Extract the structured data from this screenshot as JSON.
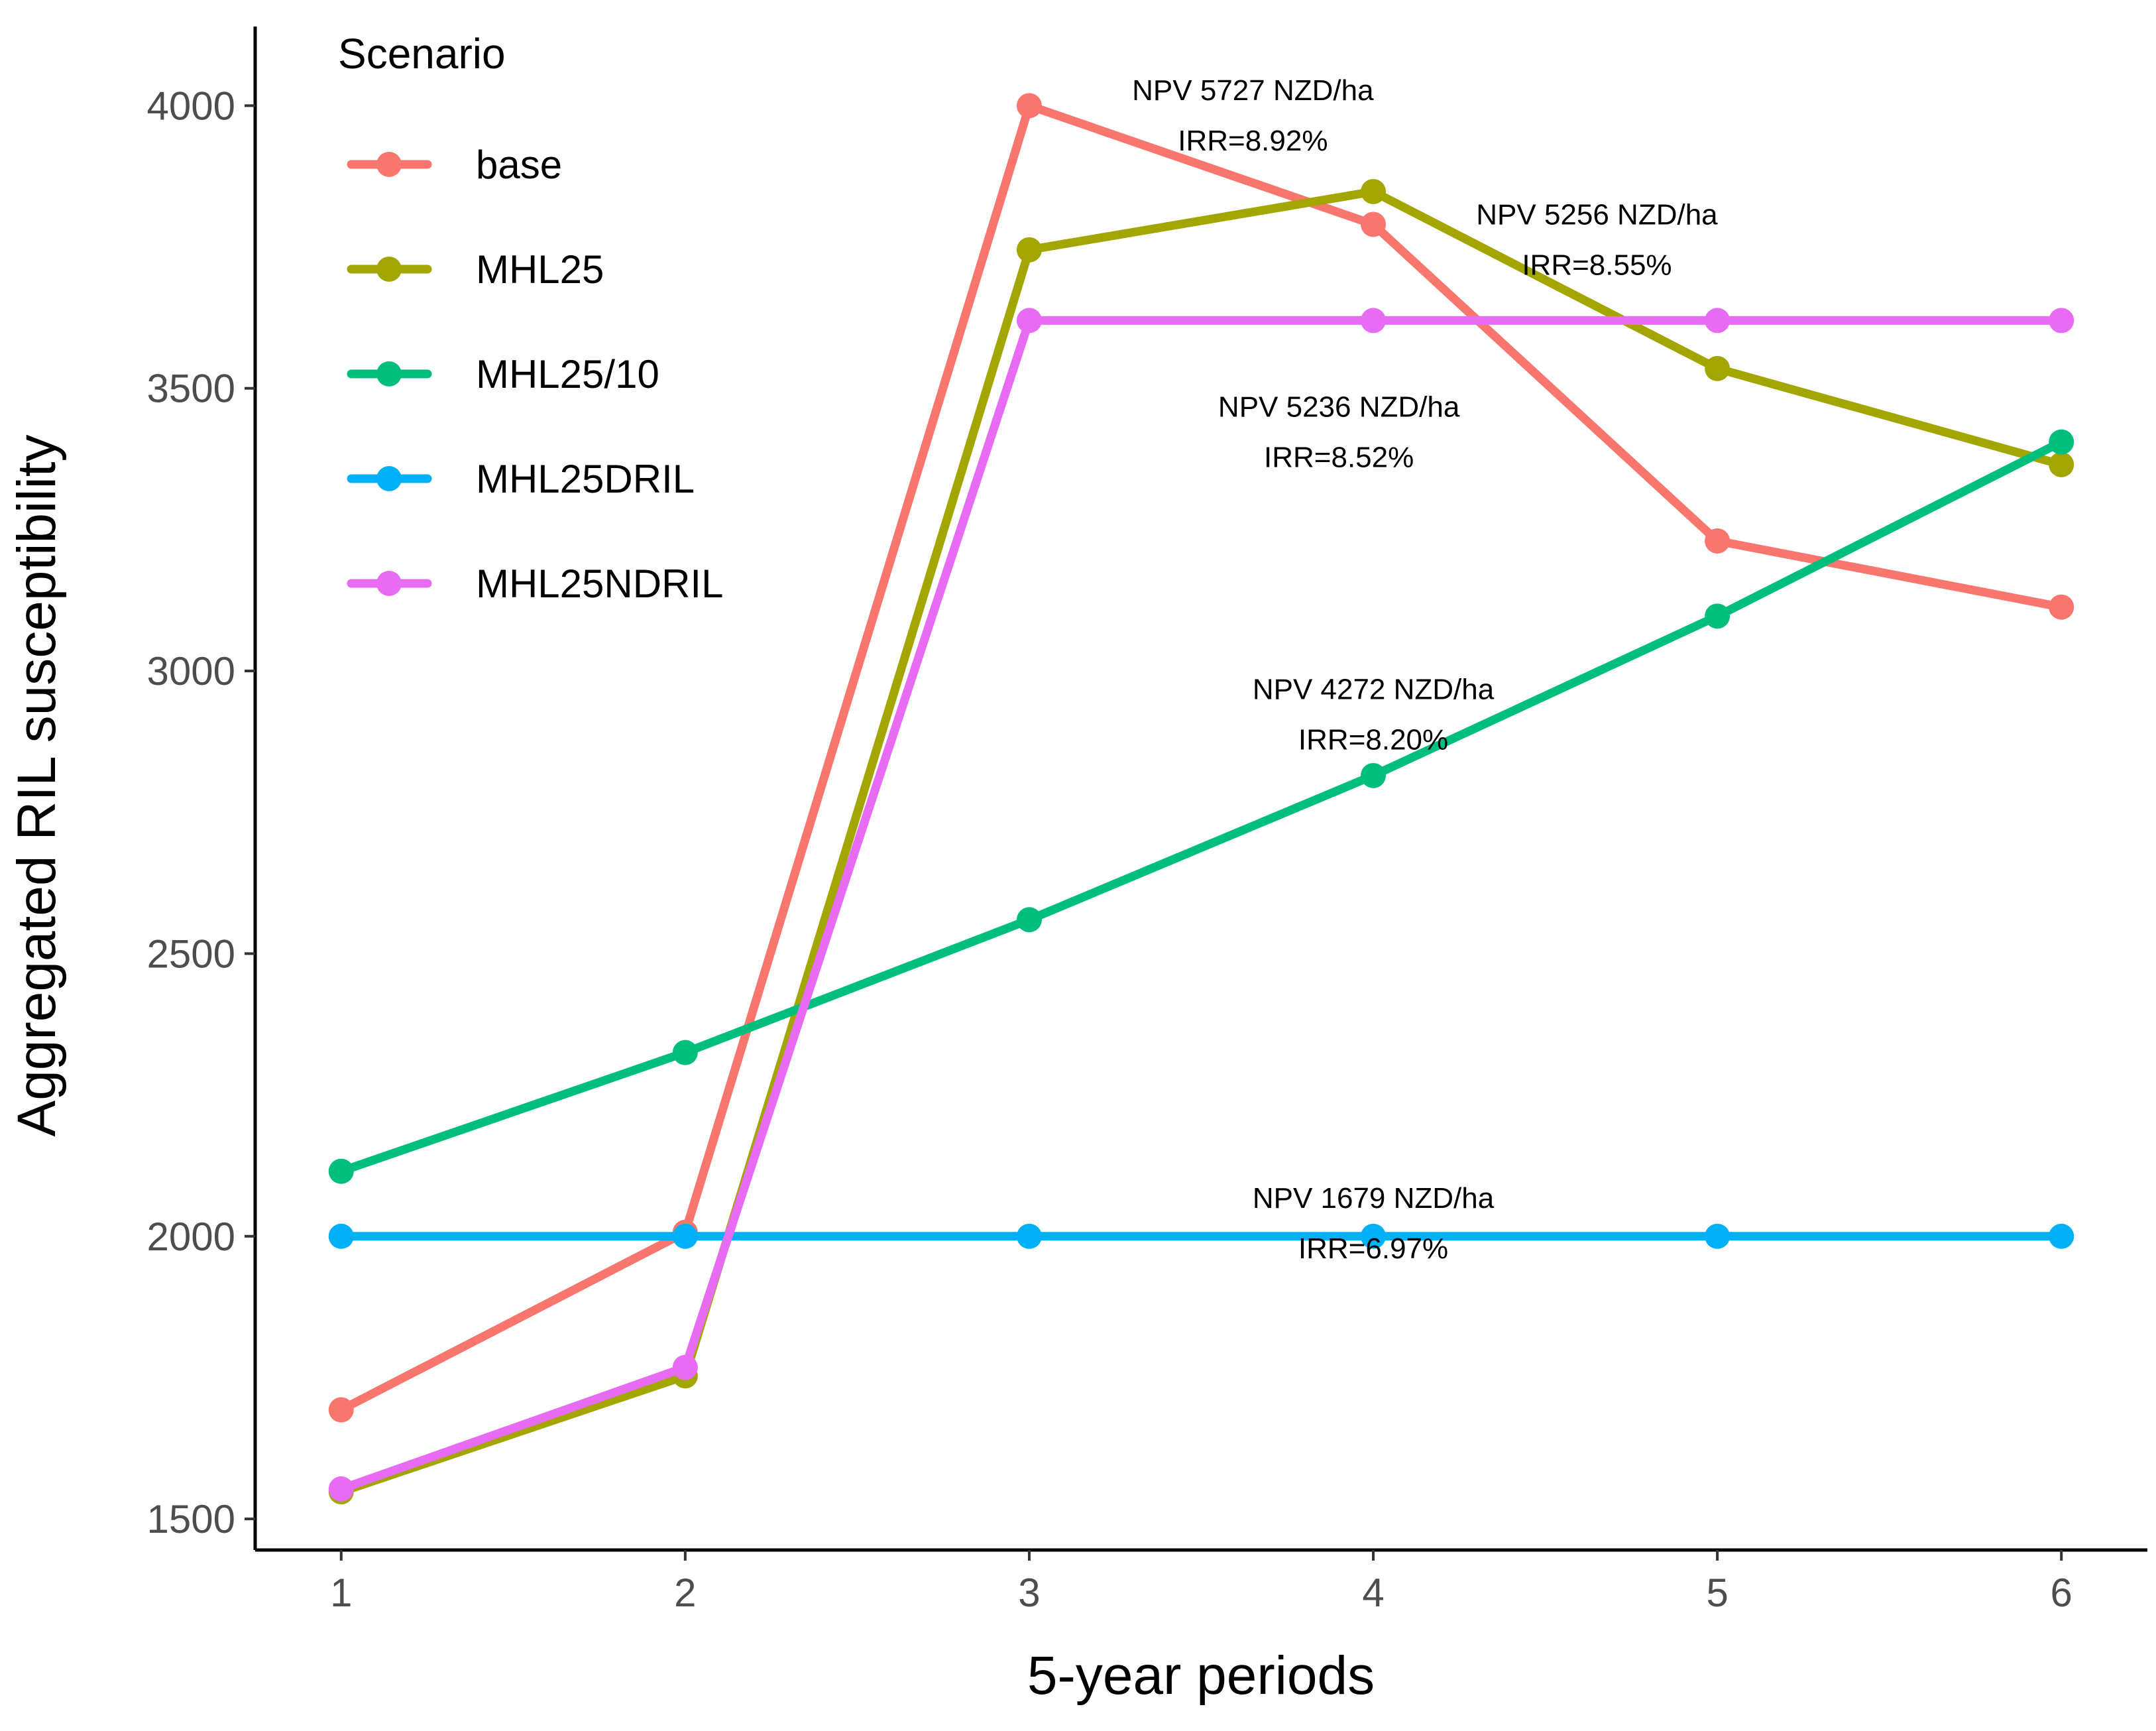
{
  "chart_data": {
    "type": "line",
    "title": "",
    "xlabel": "5-year periods",
    "ylabel": "Aggregated RIL susceptibility",
    "x": [
      1,
      2,
      3,
      4,
      5,
      6
    ],
    "x_ticks": [
      "1",
      "2",
      "3",
      "4",
      "5",
      "6"
    ],
    "xlim": [
      0.75,
      6.25
    ],
    "y_ticks": [
      "1500",
      "2000",
      "2500",
      "3000",
      "3500",
      "4000"
    ],
    "y_tick_values": [
      1500,
      2000,
      2500,
      3000,
      3500,
      4000
    ],
    "ylim": [
      1445,
      4140
    ],
    "grid": false,
    "legend": {
      "title": "Scenario",
      "position": "top-left"
    },
    "series": [
      {
        "name": "base",
        "color": "#F8766D",
        "values": [
          1693,
          2007,
          4000,
          3790,
          3230,
          3113
        ]
      },
      {
        "name": "MHL25",
        "color": "#A3A500",
        "values": [
          1548,
          1753,
          3745,
          3848,
          3535,
          3365
        ]
      },
      {
        "name": "MHL25/10",
        "color": "#00BF7D",
        "values": [
          2115,
          2325,
          2560,
          2815,
          3097,
          3405
        ]
      },
      {
        "name": "MHL25DRIL",
        "color": "#00B0F6",
        "values": [
          2000,
          2000,
          2000,
          2000,
          2000,
          2000
        ]
      },
      {
        "name": "MHL25NDRIL",
        "color": "#E76BF3",
        "values": [
          1553,
          1768,
          3620,
          3620,
          3620,
          3620
        ]
      }
    ],
    "annotations": [
      {
        "lines": [
          "NPV 5727 NZD/ha",
          "IRR=8.92%"
        ],
        "x": 3.65,
        "y": 4010
      },
      {
        "lines": [
          "NPV 5256 NZD/ha",
          "IRR=8.55%"
        ],
        "x": 4.65,
        "y": 3790
      },
      {
        "lines": [
          "NPV 5236 NZD/ha",
          "IRR=8.52%"
        ],
        "x": 3.9,
        "y": 3450
      },
      {
        "lines": [
          "NPV 4272 NZD/ha",
          "IRR=8.20%"
        ],
        "x": 4.0,
        "y": 2950
      },
      {
        "lines": [
          "NPV 1679 NZD/ha",
          "IRR=6.97%"
        ],
        "x": 4.0,
        "y": 2050
      }
    ]
  }
}
